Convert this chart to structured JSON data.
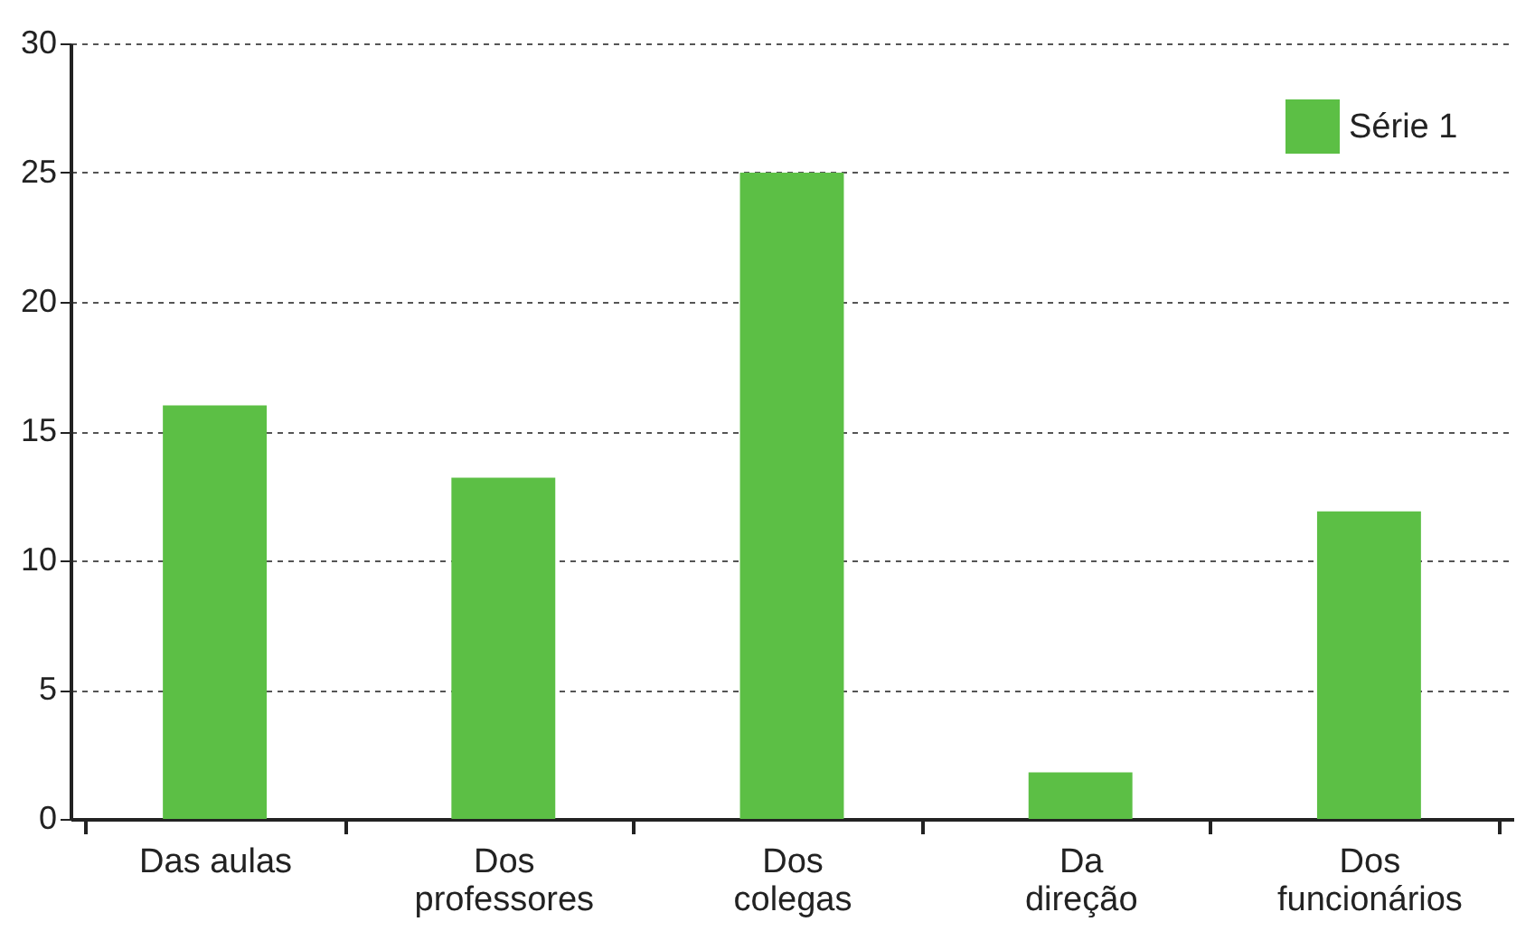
{
  "chart_data": {
    "type": "bar",
    "categories": [
      "Das aulas",
      "Dos professores",
      "Dos colegas",
      "Da direção",
      "Dos funcionários"
    ],
    "series": [
      {
        "name": "Série 1",
        "color": "#5cbf45",
        "values": [
          16,
          13.2,
          25,
          1.8,
          11.9
        ]
      }
    ],
    "ylim": [
      0,
      30
    ],
    "yticks": [
      0,
      5,
      10,
      15,
      20,
      25,
      30
    ],
    "grid": "y",
    "legend": "top right"
  }
}
